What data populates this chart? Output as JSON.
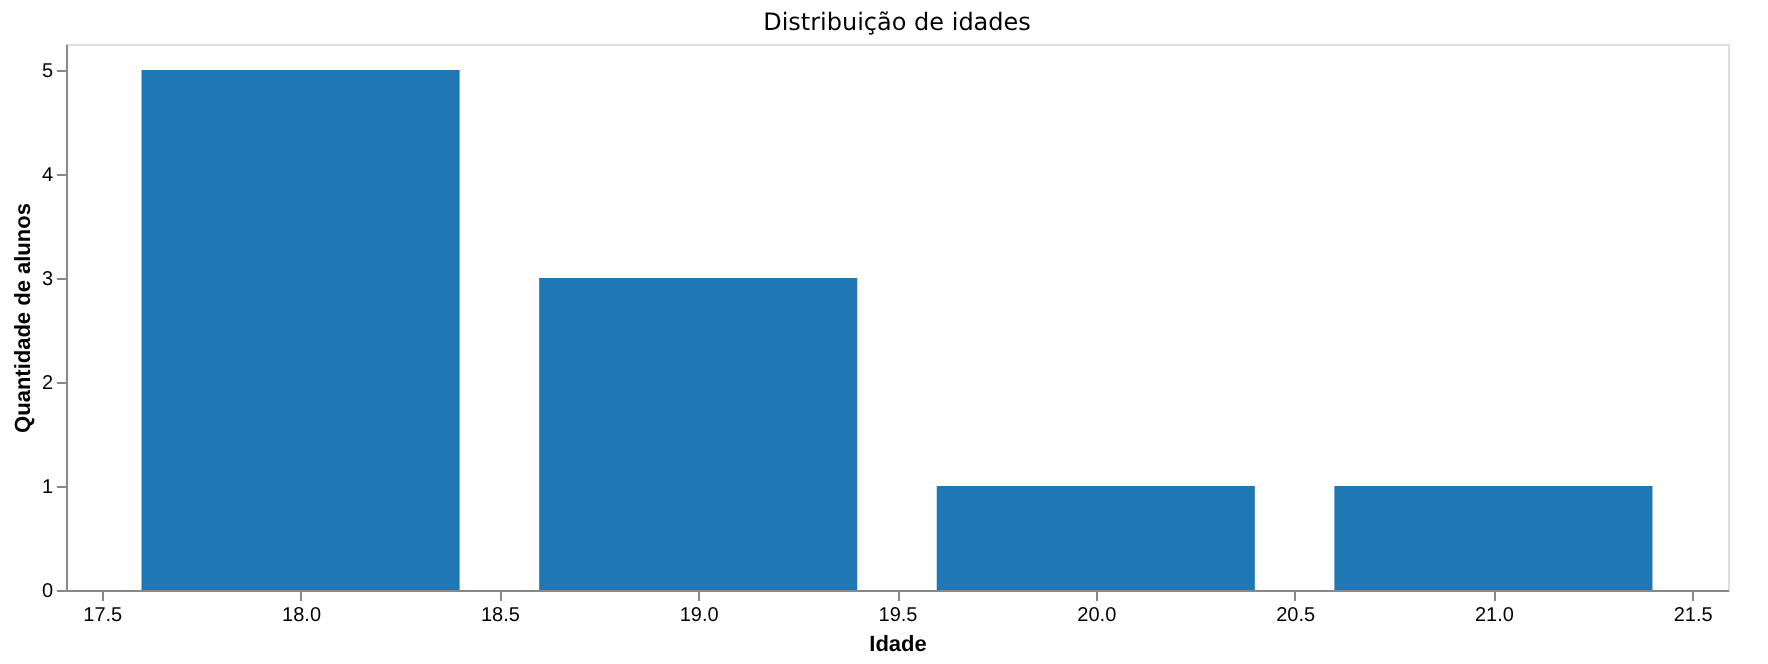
{
  "chart_data": {
    "type": "bar",
    "title": "Distribuição de idades",
    "xlabel": "Idade",
    "ylabel": "Quantidade de alunos",
    "x": [
      18,
      19,
      20,
      21
    ],
    "values": [
      5,
      3,
      1,
      1
    ],
    "color": "#1f77b4",
    "xlim": [
      17.41,
      21.59
    ],
    "xticks": [
      17.5,
      {
        "value": 18,
        "label": "18.0"
      },
      18.5,
      {
        "value": 19,
        "label": "19.0"
      },
      19.5,
      {
        "value": 20,
        "label": "20.0"
      },
      20.5,
      {
        "value": 21,
        "label": "21.0"
      },
      21.5
    ],
    "ylim": [
      0,
      5.25
    ],
    "yticks": [
      0,
      1,
      2,
      3,
      4,
      5
    ],
    "grid": false
  }
}
